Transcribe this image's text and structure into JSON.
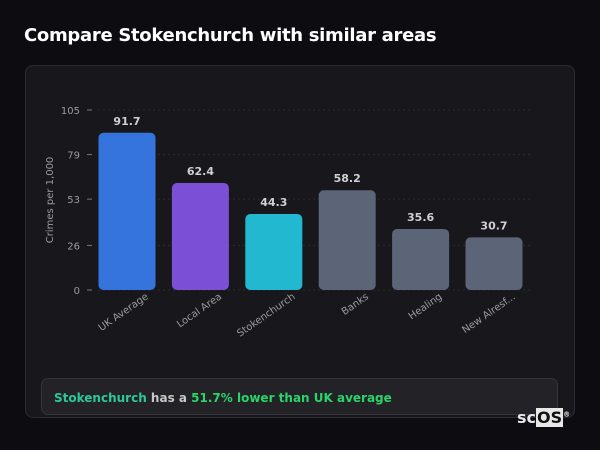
{
  "title": "Compare Stokenchurch with similar areas",
  "chart_data": {
    "type": "bar",
    "categories": [
      "UK Average",
      "Local Area",
      "Stokenchurch",
      "Banks",
      "Healing",
      "New Alresf..."
    ],
    "values": [
      91.7,
      62.4,
      44.3,
      58.2,
      35.6,
      30.7
    ],
    "value_labels": [
      "91.7",
      "62.4",
      "44.3",
      "58.2",
      "35.6",
      "30.7"
    ],
    "colors": [
      "#3574dc",
      "#7b4fd6",
      "#22b8d0",
      "#5b6577",
      "#5b6577",
      "#5b6577"
    ],
    "ylabel": "Crimes per 1,000",
    "xlabel": "",
    "ylim": [
      0,
      105
    ],
    "yticks": [
      0,
      26,
      53,
      79,
      105
    ],
    "grid": true,
    "legend": "none"
  },
  "summary": {
    "area": "Stokenchurch",
    "middle": " has a ",
    "comparison": "51.7% lower than UK average"
  },
  "logo": {
    "sc": "sc",
    "os": "OS",
    "reg": "®"
  }
}
